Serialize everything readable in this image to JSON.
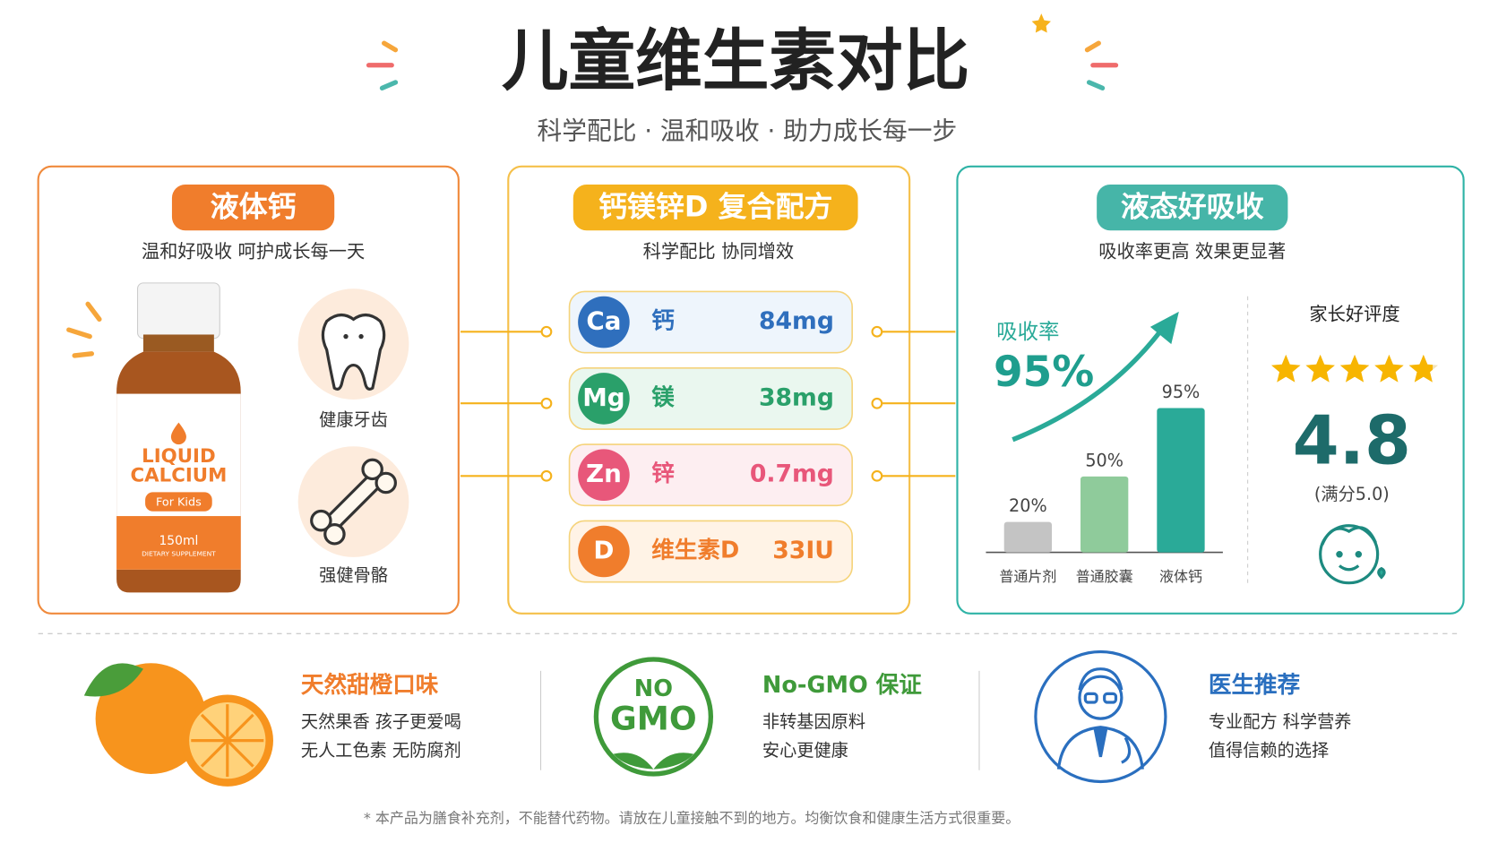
{
  "header": {
    "title": "儿童维生素对比",
    "subtitle": "科学配比 · 温和吸收 · 助力成长每一步"
  },
  "panels": [
    {
      "badge": "液体钙",
      "caption": "温和好吸收   呵护成长每一天",
      "product": {
        "line1": "LIQUID",
        "line2": "CALCIUM",
        "tag": "For Kids",
        "volume": "150ml",
        "note": "DIETARY SUPPLEMENT"
      },
      "benefits": [
        "健康牙齿",
        "强健骨骼"
      ]
    },
    {
      "badge": "钙镁锌D 复合配方",
      "caption": "科学配比   协同增效",
      "nutrients": [
        {
          "symbol": "Ca",
          "name": "钙",
          "amount": "84mg"
        },
        {
          "symbol": "Mg",
          "name": "镁",
          "amount": "38mg"
        },
        {
          "symbol": "Zn",
          "name": "锌",
          "amount": "0.7mg"
        },
        {
          "symbol": "D",
          "name": "维生素D",
          "amount": "33IU"
        }
      ]
    },
    {
      "badge": "液态好吸收",
      "caption": "吸收率更高   效果更显著",
      "rate_label": "吸收率",
      "rate": "95%",
      "chart": {
        "type": "bar",
        "categories": [
          "普通片剂",
          "普通胶囊",
          "液体钙"
        ],
        "values": [
          20,
          50,
          95
        ],
        "value_labels": [
          "20%",
          "50%",
          "95%"
        ],
        "colors": [
          "#c4c4c4",
          "#8fcb9b",
          "#2aaa98"
        ],
        "ylim": [
          0,
          100
        ]
      },
      "rating": {
        "title": "家长好评度",
        "score": 4.8,
        "max_label": "(满分5.0)"
      }
    }
  ],
  "features": [
    {
      "title": "天然甜橙口味",
      "lines": [
        "天然果香   孩子更爱喝",
        "无人工色素   无防腐剂"
      ]
    },
    {
      "badge_line1": "NO",
      "badge_line2": "GMO",
      "title": "No-GMO 保证",
      "lines": [
        "非转基因原料",
        "安心更健康"
      ]
    },
    {
      "title": "医生推荐",
      "lines": [
        "专业配方   科学营养",
        "值得信赖的选择"
      ]
    }
  ],
  "footnote": "* 本产品为膳食补充剂，不能替代药物。请放在儿童接触不到的地方。均衡饮食和健康生活方式很重要。"
}
